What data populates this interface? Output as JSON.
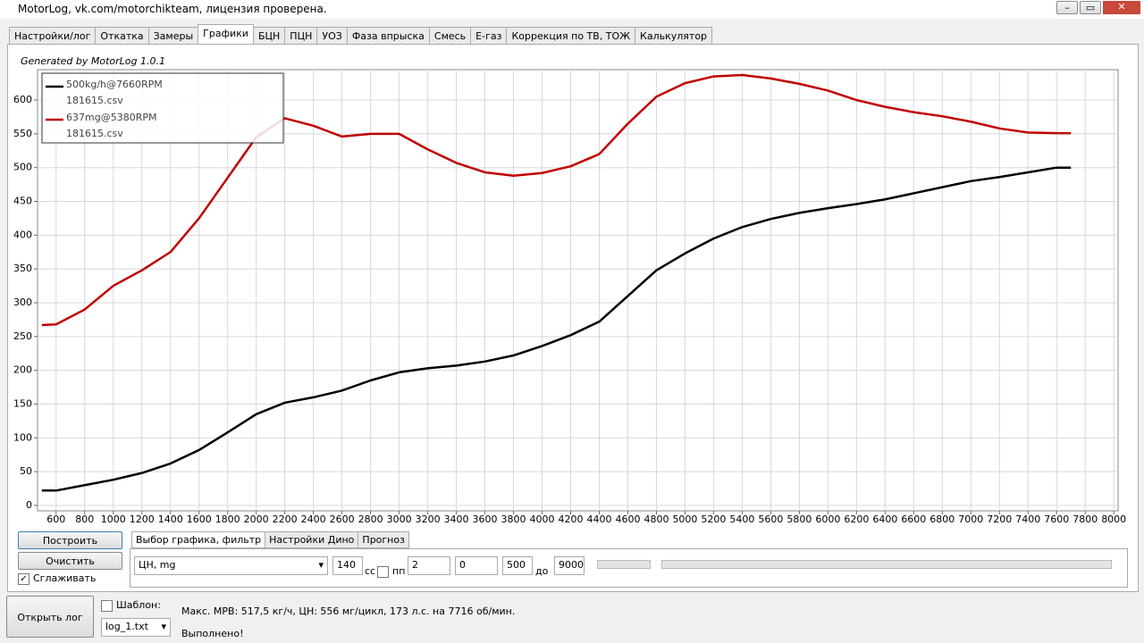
{
  "window": {
    "title": "MotorLog, vk.com/motorchikteam, лицензия проверена."
  },
  "tabs": {
    "items": [
      "Настройки/лог",
      "Откатка",
      "Замеры",
      "Графики",
      "БЦН",
      "ПЦН",
      "УОЗ",
      "Фаза впрыска",
      "Смесь",
      "E-газ",
      "Коррекция по ТВ, ТОЖ",
      "Калькулятор"
    ],
    "active": 3
  },
  "chart_data": {
    "type": "line",
    "annotation": "Generated by MotorLog 1.0.1",
    "x": [
      500,
      600,
      800,
      1000,
      1200,
      1400,
      1600,
      1800,
      2000,
      2200,
      2400,
      2600,
      2800,
      3000,
      3200,
      3400,
      3600,
      3800,
      4000,
      4200,
      4400,
      4600,
      4800,
      5000,
      5200,
      5400,
      5600,
      5800,
      6000,
      6200,
      6400,
      6600,
      6800,
      7000,
      7200,
      7400,
      7600,
      7700
    ],
    "series": [
      {
        "name": "500kg/h@7660RPM",
        "file": "181615.csv",
        "color": "#000000",
        "values": [
          22,
          22,
          30,
          38,
          48,
          62,
          82,
          108,
          135,
          152,
          160,
          170,
          185,
          197,
          203,
          207,
          213,
          222,
          236,
          252,
          272,
          310,
          348,
          373,
          395,
          412,
          424,
          433,
          440,
          446,
          453,
          462,
          471,
          480,
          486,
          493,
          500,
          500
        ]
      },
      {
        "name": "637mg@5380RPM",
        "file": "181615.csv",
        "color": "#c00000",
        "values": [
          267,
          268,
          290,
          325,
          348,
          375,
          425,
          485,
          545,
          573,
          562,
          546,
          550,
          550,
          527,
          507,
          493,
          488,
          492,
          502,
          520,
          565,
          605,
          625,
          635,
          637,
          632,
          624,
          614,
          600,
          590,
          582,
          576,
          568,
          558,
          552,
          551,
          551
        ]
      }
    ],
    "xlim": [
      470,
      8030
    ],
    "ylim": [
      -8,
      645
    ],
    "xticks": [
      600,
      800,
      1000,
      1200,
      1400,
      1600,
      1800,
      2000,
      2200,
      2400,
      2600,
      2800,
      3000,
      3200,
      3400,
      3600,
      3800,
      4000,
      4200,
      4400,
      4600,
      4800,
      5000,
      5200,
      5400,
      5600,
      5800,
      6000,
      6200,
      6400,
      6600,
      6800,
      7000,
      7200,
      7400,
      7600,
      7800,
      8000
    ],
    "yticks": [
      0,
      50,
      100,
      150,
      200,
      250,
      300,
      350,
      400,
      450,
      500,
      550,
      600
    ],
    "grid": true,
    "legend": "top-left"
  },
  "controls": {
    "build": "Построить",
    "clear": "Очистить",
    "smooth": {
      "label": "Сглаживать",
      "checked": true
    },
    "subtabs": [
      "Выбор графика, фильтр",
      "Настройки Дино",
      "Прогноз"
    ],
    "channel": "ЦН, mg",
    "filter": 140,
    "cc": "cc",
    "pp": {
      "label": "пп",
      "checked": false
    },
    "step": 2,
    "offset": 0,
    "from": 500,
    "to_label": "до",
    "to": 9000
  },
  "footer": {
    "open": "Открыть лог",
    "template": {
      "label": "Шаблон:",
      "checked": false
    },
    "file": "log_1.txt",
    "summary": "Макс. МРВ: 517,5 кг/ч, ЦН: 556 мг/цикл, 173 л.с. на 7716 об/мин.",
    "status": "Выполнено!"
  }
}
